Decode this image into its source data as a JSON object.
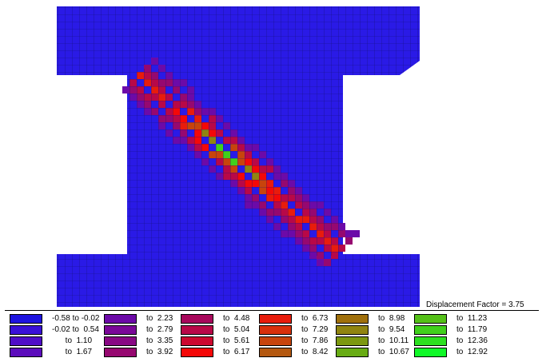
{
  "displacement_factor": {
    "label": "Displacement Factor =",
    "value": "3.75"
  },
  "legend": {
    "columns": [
      {
        "rows": [
          {
            "label": "-0.58 to -0.02",
            "color": "#1e14e0"
          },
          {
            "label": "-0.02 to  0.54",
            "color": "#3a10d8"
          },
          {
            "label": "      to  1.10",
            "color": "#4f0cc8"
          },
          {
            "label": "      to  1.67",
            "color": "#5c0cbc"
          }
        ]
      },
      {
        "rows": [
          {
            "label": "to  2.23",
            "color": "#6c0aa8"
          },
          {
            "label": "to  2.79",
            "color": "#7a0898"
          },
          {
            "label": "to  3.35",
            "color": "#880884"
          },
          {
            "label": "to  3.92",
            "color": "#960870"
          }
        ]
      },
      {
        "rows": [
          {
            "label": "to  4.48",
            "color": "#a8085c"
          },
          {
            "label": "to  5.04",
            "color": "#b80848"
          },
          {
            "label": "to  5.61",
            "color": "#cc0830"
          },
          {
            "label": "to  6.17",
            "color": "#f40808"
          }
        ]
      },
      {
        "rows": [
          {
            "label": "to  6.73",
            "color": "#e81c0c"
          },
          {
            "label": "to  7.29",
            "color": "#d8300c"
          },
          {
            "label": "to  7.86",
            "color": "#c8440c"
          },
          {
            "label": "to  8.42",
            "color": "#b45810"
          }
        ]
      },
      {
        "rows": [
          {
            "label": "to  8.98",
            "color": "#a0700c"
          },
          {
            "label": "to  9.54",
            "color": "#908410"
          },
          {
            "label": "to  10.11",
            "color": "#7c9810"
          },
          {
            "label": "to  10.67",
            "color": "#68ac14"
          }
        ]
      },
      {
        "rows": [
          {
            "label": "to  11.23",
            "color": "#54c018"
          },
          {
            "label": "to  11.79",
            "color": "#40d01c"
          },
          {
            "label": "to  12.36",
            "color": "#2ce020"
          },
          {
            "label": "to  12.92",
            "color": "#10f828"
          }
        ]
      }
    ]
  },
  "mesh": {
    "base_color": "#2a1ae6",
    "line_color": "#14107a"
  }
}
